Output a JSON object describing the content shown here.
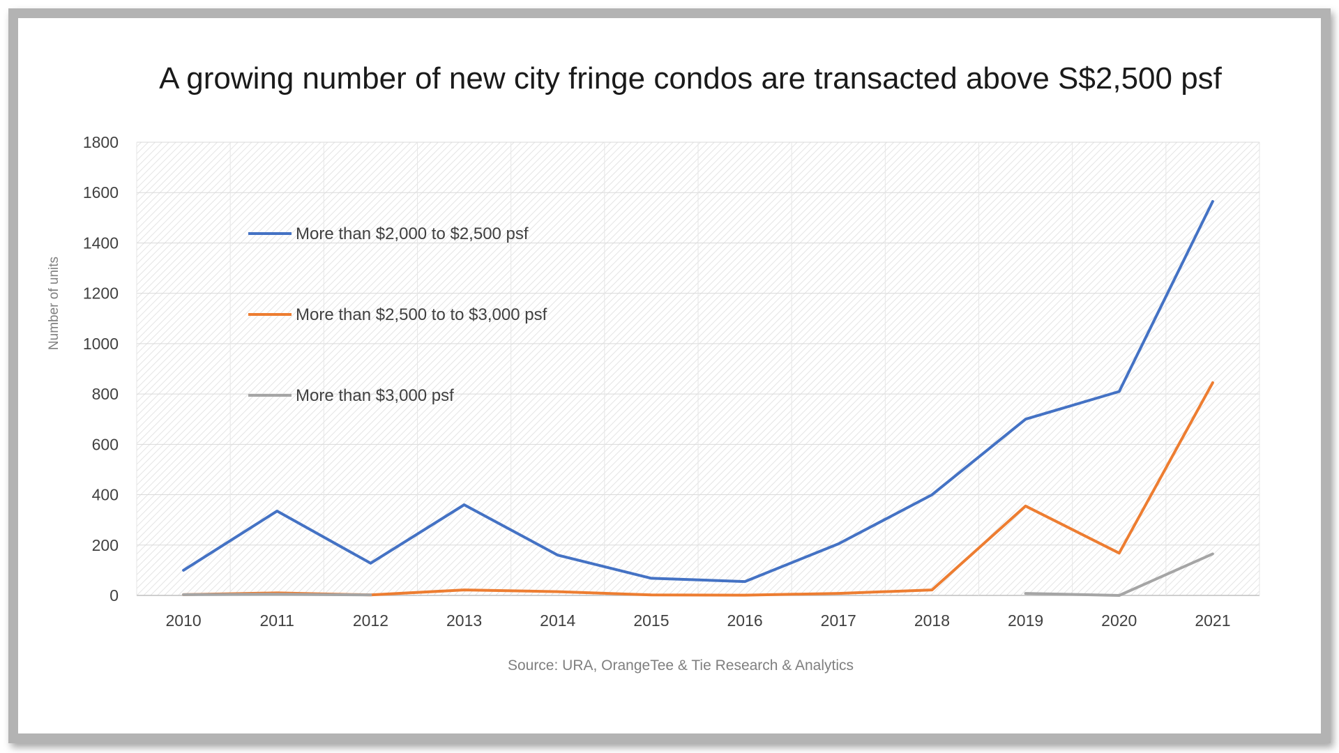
{
  "chart_data": {
    "type": "line",
    "title": "A growing number of new city fringe condos are transacted above S$2,500 psf",
    "xlabel": "",
    "ylabel": "Number of units",
    "source": "Source: URA, OrangeTee & Tie Research & Analytics",
    "categories": [
      "2010",
      "2011",
      "2012",
      "2013",
      "2014",
      "2015",
      "2016",
      "2017",
      "2018",
      "2019",
      "2020",
      "2021"
    ],
    "ylim": [
      0,
      1800
    ],
    "yticks": [
      0,
      200,
      400,
      600,
      800,
      1000,
      1200,
      1400,
      1600,
      1800
    ],
    "grid": true,
    "legend_position": "upper-left inside plot",
    "series": [
      {
        "name": "More than $2,000 to $2,500 psf",
        "color": "#4472c4",
        "values": [
          100,
          335,
          128,
          360,
          160,
          68,
          55,
          205,
          400,
          700,
          810,
          1565
        ]
      },
      {
        "name": "More than $2,500 to to $3,000 psf",
        "color": "#ed7d31",
        "values": [
          3,
          10,
          2,
          22,
          15,
          2,
          1,
          8,
          22,
          355,
          168,
          845
        ]
      },
      {
        "name": "More than $3,000 psf",
        "color": "#a5a5a5",
        "values": [
          3,
          5,
          2,
          null,
          null,
          null,
          null,
          null,
          null,
          8,
          0,
          165
        ]
      }
    ]
  }
}
